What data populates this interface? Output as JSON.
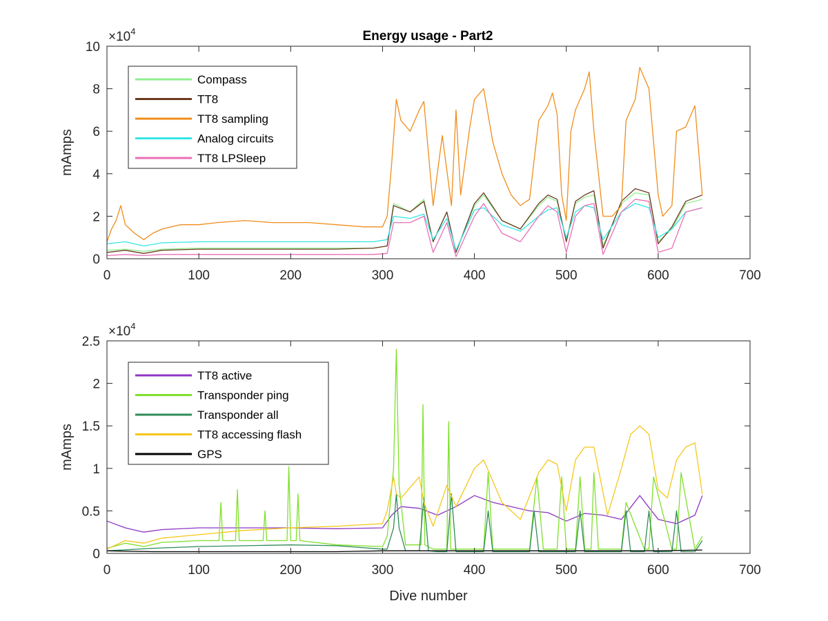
{
  "figure": {
    "title": "Energy usage - Part2"
  },
  "chart_data": [
    {
      "type": "line",
      "title": "Energy usage - Part2",
      "xlabel": "",
      "ylabel": "mAmps",
      "exponent_label": "×10",
      "exponent_power": "4",
      "xlim": [
        0,
        700
      ],
      "ylim": [
        0,
        100000
      ],
      "xticks": [
        "0",
        "100",
        "200",
        "300",
        "400",
        "500",
        "600",
        "700"
      ],
      "yticks": [
        "0",
        "2",
        "4",
        "6",
        "8",
        "10"
      ],
      "legend_position": "top-left",
      "series": [
        {
          "name": "Compass",
          "color": "#90EE90",
          "x": [
            0,
            20,
            40,
            60,
            100,
            150,
            200,
            250,
            290,
            305,
            312,
            330,
            345,
            355,
            370,
            380,
            400,
            410,
            430,
            450,
            470,
            480,
            490,
            500,
            510,
            520,
            530,
            540,
            560,
            575,
            590,
            600,
            615,
            630,
            648
          ],
          "y": [
            4000,
            4500,
            3500,
            4500,
            5000,
            5000,
            5000,
            5000,
            5000,
            6000,
            26000,
            22000,
            28000,
            8000,
            22000,
            3000,
            25000,
            30000,
            18000,
            14000,
            25000,
            29000,
            27000,
            9000,
            26000,
            29000,
            30000,
            6000,
            26000,
            31000,
            30000,
            8000,
            14000,
            26000,
            28000
          ]
        },
        {
          "name": "TT8",
          "color": "#6B3A1F",
          "x": [
            0,
            20,
            40,
            60,
            100,
            150,
            200,
            250,
            290,
            305,
            312,
            330,
            345,
            355,
            370,
            380,
            400,
            410,
            430,
            450,
            470,
            480,
            490,
            500,
            510,
            520,
            530,
            540,
            560,
            575,
            590,
            600,
            615,
            630,
            648
          ],
          "y": [
            3000,
            4000,
            2500,
            4000,
            4500,
            4500,
            4500,
            4500,
            5000,
            6000,
            25000,
            22000,
            27000,
            8000,
            22000,
            3000,
            26000,
            31000,
            18000,
            14000,
            26000,
            30000,
            28000,
            8000,
            27000,
            30000,
            32000,
            5000,
            27000,
            33000,
            31000,
            7000,
            15000,
            27000,
            30000
          ]
        },
        {
          "name": "TT8 sampling",
          "color": "#F08C1A",
          "x": [
            0,
            5,
            10,
            15,
            20,
            30,
            40,
            50,
            60,
            80,
            100,
            120,
            150,
            180,
            200,
            220,
            250,
            280,
            300,
            305,
            310,
            315,
            320,
            330,
            340,
            345,
            355,
            365,
            375,
            380,
            385,
            395,
            400,
            410,
            420,
            430,
            440,
            450,
            460,
            470,
            480,
            485,
            490,
            495,
            500,
            505,
            510,
            520,
            525,
            530,
            540,
            550,
            560,
            565,
            575,
            580,
            590,
            600,
            605,
            615,
            620,
            630,
            640,
            648
          ],
          "y": [
            8000,
            14000,
            18000,
            25000,
            16000,
            12000,
            9000,
            12000,
            14000,
            16000,
            16000,
            17000,
            18000,
            17000,
            17000,
            17000,
            16000,
            15000,
            15000,
            20000,
            45000,
            75000,
            65000,
            60000,
            70000,
            74000,
            25000,
            58000,
            25000,
            70000,
            30000,
            62000,
            75000,
            80000,
            55000,
            40000,
            30000,
            25000,
            28000,
            65000,
            72000,
            78000,
            68000,
            30000,
            18000,
            60000,
            70000,
            80000,
            88000,
            60000,
            20000,
            20000,
            25000,
            65000,
            75000,
            90000,
            80000,
            30000,
            20000,
            25000,
            60000,
            62000,
            72000,
            30000
          ]
        },
        {
          "name": "Analog circuits",
          "color": "#33E5E5",
          "x": [
            0,
            20,
            40,
            60,
            100,
            150,
            200,
            250,
            290,
            305,
            312,
            330,
            345,
            355,
            370,
            380,
            400,
            410,
            430,
            450,
            470,
            480,
            490,
            500,
            510,
            520,
            530,
            540,
            560,
            575,
            590,
            600,
            615,
            630,
            648
          ],
          "y": [
            7000,
            8000,
            6000,
            7500,
            8000,
            8000,
            8000,
            8000,
            8000,
            9000,
            20000,
            19000,
            21000,
            9000,
            19000,
            4000,
            23000,
            24000,
            16000,
            13000,
            20000,
            23000,
            24000,
            10000,
            22000,
            25000,
            24000,
            9000,
            22000,
            26000,
            24000,
            10000,
            14000,
            22000,
            24000
          ]
        },
        {
          "name": "TT8 LPSleep",
          "color": "#E96FB6",
          "x": [
            0,
            20,
            40,
            60,
            100,
            150,
            200,
            250,
            290,
            305,
            312,
            330,
            345,
            355,
            370,
            380,
            400,
            410,
            430,
            450,
            470,
            480,
            490,
            500,
            510,
            520,
            530,
            540,
            560,
            575,
            590,
            600,
            615,
            630,
            648
          ],
          "y": [
            1500,
            2000,
            1500,
            2000,
            2000,
            2000,
            2000,
            2000,
            2000,
            2500,
            17000,
            17000,
            20000,
            3000,
            17000,
            1000,
            20000,
            26000,
            12000,
            8000,
            20000,
            25000,
            22000,
            3000,
            20000,
            25000,
            26000,
            2000,
            22000,
            28000,
            27000,
            3000,
            5000,
            22000,
            24000
          ]
        }
      ]
    },
    {
      "type": "line",
      "title": "",
      "xlabel": "Dive number",
      "ylabel": "mAmps",
      "exponent_label": "×10",
      "exponent_power": "4",
      "xlim": [
        0,
        700
      ],
      "ylim": [
        0,
        25000
      ],
      "xticks": [
        "0",
        "100",
        "200",
        "300",
        "400",
        "500",
        "600",
        "700"
      ],
      "yticks": [
        "0",
        "0.5",
        "1",
        "1.5",
        "2",
        "2.5"
      ],
      "legend_position": "top-left",
      "series": [
        {
          "name": "TT8 active",
          "color": "#8E35C4",
          "x": [
            0,
            20,
            40,
            60,
            100,
            150,
            200,
            250,
            300,
            310,
            320,
            340,
            360,
            380,
            400,
            420,
            440,
            460,
            480,
            500,
            520,
            540,
            560,
            580,
            600,
            620,
            640,
            648
          ],
          "y": [
            3800,
            3000,
            2500,
            2800,
            3000,
            3000,
            3000,
            2900,
            3000,
            4500,
            5500,
            5300,
            4500,
            5500,
            6800,
            6000,
            5500,
            5000,
            4800,
            3800,
            4700,
            4500,
            4000,
            6800,
            4000,
            3500,
            4500,
            6800
          ]
        },
        {
          "name": "Transponder ping",
          "color": "#7FE02A",
          "x": [
            0,
            20,
            40,
            60,
            80,
            100,
            122,
            124,
            126,
            140,
            142,
            144,
            170,
            172,
            174,
            196,
            198,
            200,
            206,
            208,
            210,
            250,
            300,
            305,
            312,
            315,
            318,
            325,
            342,
            344,
            346,
            355,
            370,
            372,
            374,
            385,
            410,
            415,
            420,
            440,
            460,
            468,
            475,
            480,
            490,
            495,
            500,
            510,
            515,
            520,
            527,
            530,
            535,
            555,
            560,
            565,
            585,
            590,
            595,
            615,
            620,
            625,
            640,
            648
          ],
          "y": [
            600,
            1200,
            800,
            1300,
            1400,
            1500,
            1500,
            6000,
            1500,
            1500,
            7500,
            1500,
            1500,
            5000,
            1500,
            1500,
            10200,
            1500,
            1500,
            7000,
            1500,
            1000,
            800,
            2000,
            10000,
            24000,
            8000,
            1000,
            1000,
            17500,
            1000,
            500,
            500,
            15500,
            500,
            500,
            500,
            9500,
            500,
            500,
            500,
            9000,
            500,
            500,
            500,
            9000,
            500,
            500,
            9000,
            500,
            500,
            9500,
            500,
            500,
            500,
            6000,
            500,
            500,
            9000,
            500,
            500,
            9500,
            500,
            2000
          ]
        },
        {
          "name": "Transponder all",
          "color": "#2E8B57",
          "x": [
            0,
            50,
            100,
            150,
            200,
            250,
            300,
            305,
            312,
            315,
            318,
            325,
            340,
            345,
            350,
            360,
            370,
            375,
            380,
            400,
            410,
            415,
            420,
            440,
            460,
            465,
            470,
            480,
            490,
            500,
            510,
            515,
            520,
            530,
            545,
            560,
            565,
            570,
            585,
            590,
            595,
            615,
            620,
            625,
            640,
            648
          ],
          "y": [
            300,
            600,
            800,
            900,
            1000,
            900,
            500,
            500,
            3000,
            7000,
            3000,
            300,
            300,
            6500,
            300,
            200,
            200,
            7000,
            200,
            200,
            200,
            5000,
            200,
            200,
            200,
            5000,
            200,
            200,
            200,
            200,
            200,
            5000,
            200,
            200,
            200,
            200,
            5000,
            200,
            200,
            5000,
            200,
            200,
            5000,
            200,
            200,
            1500
          ]
        },
        {
          "name": "TT8 accessing flash",
          "color": "#F5C718",
          "x": [
            0,
            20,
            40,
            60,
            80,
            100,
            150,
            200,
            250,
            300,
            305,
            312,
            315,
            320,
            340,
            345,
            355,
            370,
            380,
            400,
            410,
            430,
            450,
            470,
            480,
            490,
            500,
            510,
            520,
            530,
            545,
            560,
            570,
            580,
            590,
            600,
            610,
            620,
            630,
            640,
            648
          ],
          "y": [
            500,
            1500,
            1200,
            1800,
            2000,
            2200,
            2700,
            3000,
            3200,
            3500,
            5000,
            9000,
            7000,
            6500,
            9000,
            6000,
            3200,
            8000,
            5500,
            10000,
            11000,
            6000,
            4000,
            9500,
            11000,
            10500,
            5000,
            11000,
            12500,
            12500,
            4500,
            10000,
            14000,
            15000,
            14000,
            7500,
            6500,
            11000,
            12500,
            13000,
            7000
          ]
        },
        {
          "name": "GPS",
          "color": "#000000",
          "x": [
            0,
            50,
            100,
            150,
            200,
            250,
            300,
            350,
            400,
            450,
            500,
            550,
            600,
            648
          ],
          "y": [
            300,
            200,
            200,
            200,
            200,
            200,
            300,
            300,
            300,
            300,
            300,
            300,
            300,
            400
          ]
        }
      ]
    }
  ]
}
